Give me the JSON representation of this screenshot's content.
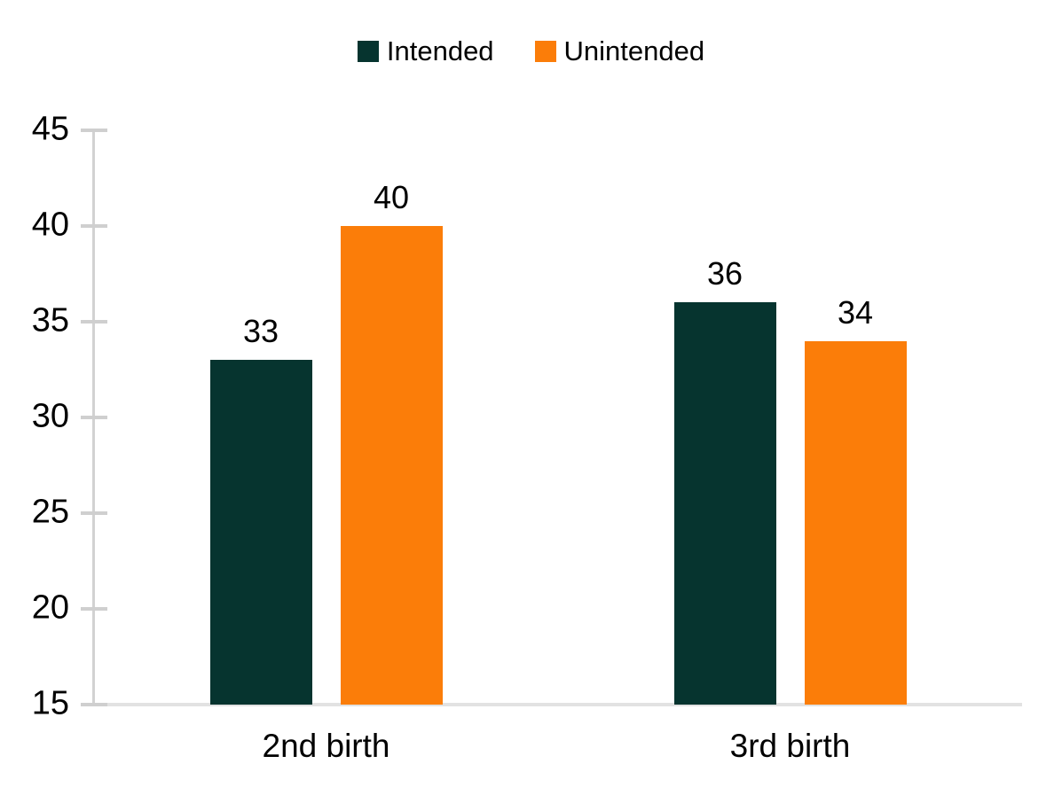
{
  "chart_data": {
    "type": "bar",
    "title": "",
    "categories": [
      "2nd birth",
      "3rd birth"
    ],
    "series": [
      {
        "name": "Intended",
        "color": "#06342f",
        "values": [
          33,
          36
        ]
      },
      {
        "name": "Unintended",
        "color": "#fb7d09",
        "values": [
          40,
          34
        ]
      }
    ],
    "data_labels": [
      [
        "33",
        "36"
      ],
      [
        "40",
        "34"
      ]
    ],
    "xlabel": "",
    "ylabel": "",
    "ylim": [
      15,
      45
    ],
    "yticks": [
      45,
      40,
      35,
      30,
      25,
      20,
      15
    ],
    "grid": false,
    "legend_position": "top",
    "colors": {
      "axis": "#d2d2d2",
      "tick": "#cfcfcf",
      "baseline": "#e2e2e2",
      "text": "#000000",
      "background": "#ffffff"
    }
  }
}
